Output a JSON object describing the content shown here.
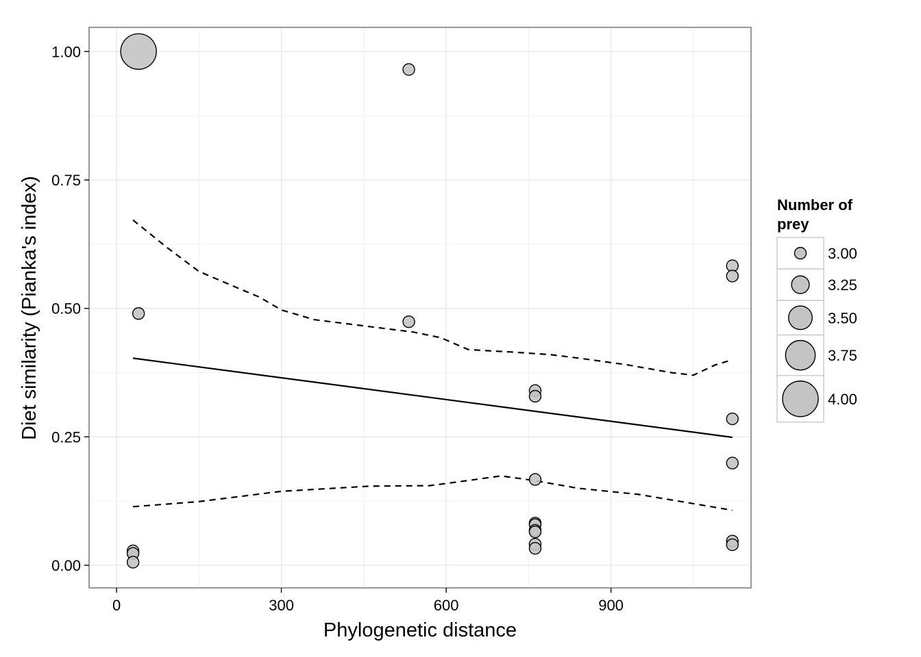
{
  "chart_data": {
    "type": "scatter",
    "xlabel": "Phylogenetic distance",
    "ylabel": "Diet similarity (Pianka's index)",
    "xlim": [
      -50,
      1155
    ],
    "ylim": [
      -0.044,
      1.047
    ],
    "x_ticks": [
      0,
      300,
      600,
      900
    ],
    "x_tick_labels": [
      "0",
      "300",
      "600",
      "900"
    ],
    "y_ticks": [
      0,
      0.25,
      0.5,
      0.75,
      1.0
    ],
    "y_tick_labels": [
      "0.00",
      "0.25",
      "0.50",
      "0.75",
      "1.00"
    ],
    "grid": true,
    "legend": {
      "title_lines": [
        "Number of",
        "prey"
      ],
      "position": "right",
      "entries": [
        {
          "label": "3.00",
          "value": 3.0
        },
        {
          "label": "3.25",
          "value": 3.25
        },
        {
          "label": "3.50",
          "value": 3.5
        },
        {
          "label": "3.75",
          "value": 3.75
        },
        {
          "label": "4.00",
          "value": 4.0
        }
      ]
    },
    "points": [
      {
        "x": 40,
        "y": 1.0,
        "prey": 4.0
      },
      {
        "x": 532,
        "y": 0.965,
        "prey": 3.0
      },
      {
        "x": 40,
        "y": 0.49,
        "prey": 3.0
      },
      {
        "x": 532,
        "y": 0.474,
        "prey": 3.0
      },
      {
        "x": 30,
        "y": 0.028,
        "prey": 3.0
      },
      {
        "x": 30,
        "y": 0.023,
        "prey": 3.0
      },
      {
        "x": 30,
        "y": 0.006,
        "prey": 3.0
      },
      {
        "x": 762,
        "y": 0.34,
        "prey": 3.0
      },
      {
        "x": 762,
        "y": 0.329,
        "prey": 3.0
      },
      {
        "x": 762,
        "y": 0.167,
        "prey": 3.0
      },
      {
        "x": 762,
        "y": 0.082,
        "prey": 3.0
      },
      {
        "x": 762,
        "y": 0.079,
        "prey": 3.0
      },
      {
        "x": 762,
        "y": 0.068,
        "prey": 3.0
      },
      {
        "x": 762,
        "y": 0.065,
        "prey": 3.0
      },
      {
        "x": 762,
        "y": 0.041,
        "prey": 3.0
      },
      {
        "x": 762,
        "y": 0.033,
        "prey": 3.0
      },
      {
        "x": 1121,
        "y": 0.583,
        "prey": 3.0
      },
      {
        "x": 1121,
        "y": 0.563,
        "prey": 3.0
      },
      {
        "x": 1121,
        "y": 0.285,
        "prey": 3.0
      },
      {
        "x": 1121,
        "y": 0.199,
        "prey": 3.0
      },
      {
        "x": 1121,
        "y": 0.047,
        "prey": 3.0
      },
      {
        "x": 1121,
        "y": 0.04,
        "prey": 3.0
      }
    ],
    "series": [
      {
        "style": "solid",
        "x": [
          30,
          1121
        ],
        "y": [
          0.403,
          0.249
        ]
      },
      {
        "style": "dashed",
        "x": [
          30,
          90,
          150,
          220,
          260,
          300,
          360,
          420,
          480,
          540,
          590,
          640,
          670,
          720,
          790,
          850,
          930,
          1010,
          1050,
          1090,
          1121
        ],
        "y": [
          0.672,
          0.62,
          0.572,
          0.54,
          0.522,
          0.497,
          0.478,
          0.47,
          0.462,
          0.454,
          0.443,
          0.42,
          0.418,
          0.415,
          0.41,
          0.402,
          0.39,
          0.375,
          0.37,
          0.39,
          0.4
        ]
      },
      {
        "style": "dashed",
        "x": [
          30,
          150,
          300,
          460,
          570,
          640,
          700,
          760,
          840,
          950,
          1050,
          1121
        ],
        "y": [
          0.114,
          0.124,
          0.144,
          0.154,
          0.155,
          0.165,
          0.174,
          0.165,
          0.15,
          0.138,
          0.12,
          0.107
        ]
      }
    ]
  }
}
